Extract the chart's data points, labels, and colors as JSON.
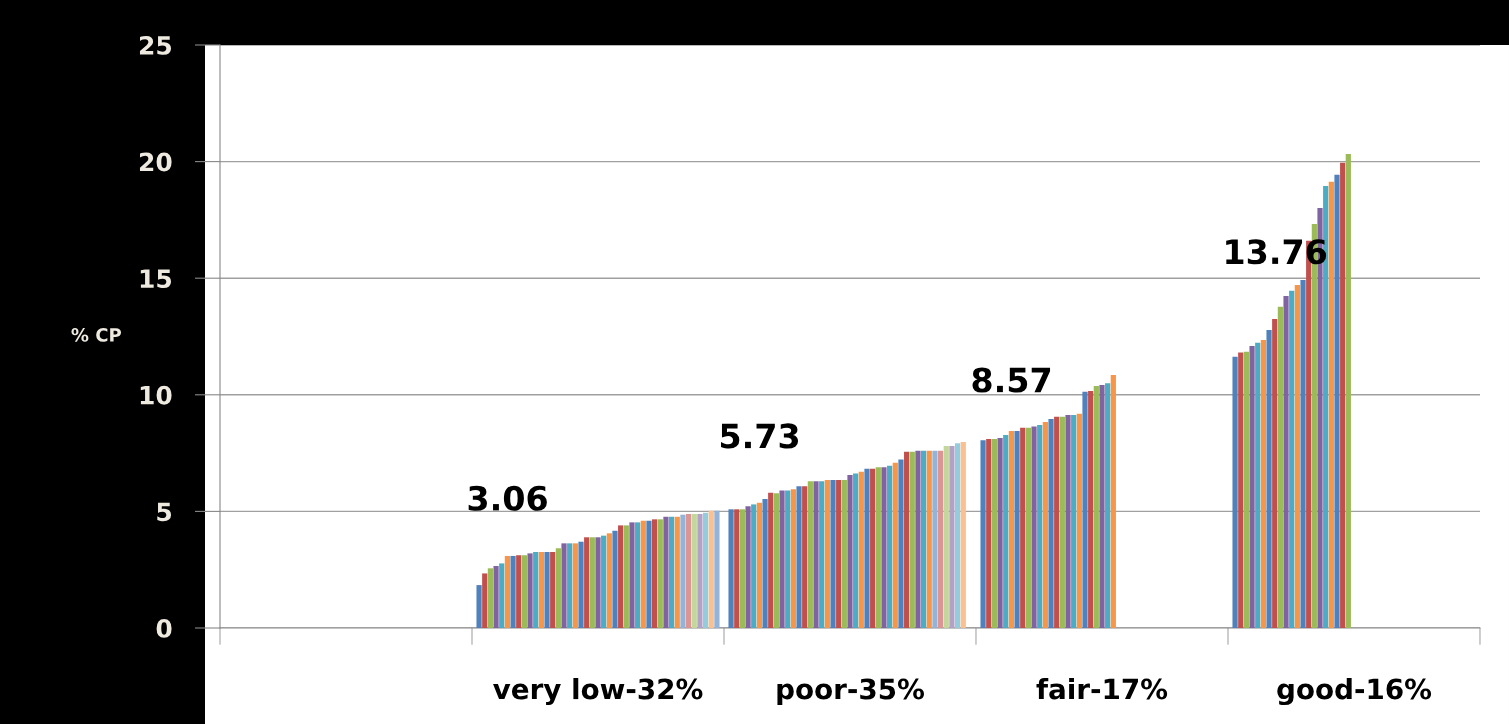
{
  "chart_data": {
    "type": "bar",
    "ylabel": "% CP",
    "categories": [
      null,
      "very low-32%",
      "poor-35%",
      "fair-17%",
      "good-16%"
    ],
    "ylim": [
      0,
      25
    ],
    "yticks": [
      0,
      5,
      10,
      15,
      20,
      25
    ],
    "grid": "y",
    "annotations": [
      "3.06",
      "5.73",
      "8.57",
      "13.76"
    ],
    "series": [
      {
        "color": "#4f81bd",
        "values": [
          null,
          1.84,
          5.09,
          8.05,
          11.63
        ]
      },
      {
        "color": "#c0504d",
        "values": [
          null,
          2.34,
          5.09,
          8.1,
          11.81
        ]
      },
      {
        "color": "#9bbb59",
        "values": [
          null,
          2.56,
          5.09,
          8.1,
          11.85
        ]
      },
      {
        "color": "#8064a2",
        "values": [
          null,
          2.66,
          5.22,
          8.15,
          12.09
        ]
      },
      {
        "color": "#4bacc6",
        "values": [
          null,
          2.77,
          5.3,
          8.28,
          12.23
        ]
      },
      {
        "color": "#f79646",
        "values": [
          null,
          3.09,
          5.37,
          8.45,
          12.35
        ]
      },
      {
        "color": "#4f81bd",
        "values": [
          null,
          3.09,
          5.53,
          8.45,
          12.78
        ]
      },
      {
        "color": "#c0504d",
        "values": [
          null,
          3.12,
          5.8,
          8.59,
          13.25
        ]
      },
      {
        "color": "#9bbb59",
        "values": [
          null,
          3.12,
          5.78,
          8.59,
          13.78
        ]
      },
      {
        "color": "#8064a2",
        "values": [
          null,
          3.2,
          5.9,
          8.64,
          14.24
        ]
      },
      {
        "color": "#4bacc6",
        "values": [
          null,
          3.26,
          5.9,
          8.71,
          14.46
        ]
      },
      {
        "color": "#f79646",
        "values": [
          null,
          3.26,
          5.95,
          8.83,
          14.71
        ]
      },
      {
        "color": "#4f81bd",
        "values": [
          null,
          3.26,
          6.08,
          8.96,
          14.92
        ]
      },
      {
        "color": "#c0504d",
        "values": [
          null,
          3.26,
          6.08,
          9.06,
          16.61
        ]
      },
      {
        "color": "#9bbb59",
        "values": [
          null,
          3.42,
          6.29,
          9.06,
          17.32
        ]
      },
      {
        "color": "#8064a2",
        "values": [
          null,
          3.63,
          6.29,
          9.13,
          18.01
        ]
      },
      {
        "color": "#4bacc6",
        "values": [
          null,
          3.63,
          6.29,
          9.13,
          18.95
        ]
      },
      {
        "color": "#f79646",
        "values": [
          null,
          3.63,
          6.35,
          9.19,
          19.14
        ]
      },
      {
        "color": "#4f81bd",
        "values": [
          null,
          3.7,
          6.35,
          10.13,
          19.44
        ]
      },
      {
        "color": "#c0504d",
        "values": [
          null,
          3.89,
          6.35,
          10.16,
          19.95
        ]
      },
      {
        "color": "#9bbb59",
        "values": [
          null,
          3.89,
          6.35,
          10.38,
          20.33
        ]
      },
      {
        "color": "#8064a2",
        "values": [
          null,
          3.89,
          6.56,
          10.42,
          null
        ]
      },
      {
        "color": "#4bacc6",
        "values": [
          null,
          3.96,
          6.63,
          10.49,
          null
        ]
      },
      {
        "color": "#f79646",
        "values": [
          null,
          4.06,
          6.7,
          10.85,
          null
        ]
      },
      {
        "color": "#4f81bd",
        "values": [
          null,
          4.17,
          6.83,
          null,
          null
        ]
      },
      {
        "color": "#c0504d",
        "values": [
          null,
          4.4,
          6.83,
          null,
          null
        ]
      },
      {
        "color": "#9bbb59",
        "values": [
          null,
          4.4,
          6.89,
          null,
          null
        ]
      },
      {
        "color": "#8064a2",
        "values": [
          null,
          4.53,
          6.89,
          null,
          null
        ]
      },
      {
        "color": "#4bacc6",
        "values": [
          null,
          4.53,
          6.96,
          null,
          null
        ]
      },
      {
        "color": "#f79646",
        "values": [
          null,
          4.6,
          7.09,
          null,
          null
        ]
      },
      {
        "color": "#4f81bd",
        "values": [
          null,
          4.6,
          7.23,
          null,
          null
        ]
      },
      {
        "color": "#c0504d",
        "values": [
          null,
          4.66,
          7.56,
          null,
          null
        ]
      },
      {
        "color": "#9bbb59",
        "values": [
          null,
          4.66,
          7.56,
          null,
          null
        ]
      },
      {
        "color": "#8064a2",
        "values": [
          null,
          4.77,
          7.6,
          null,
          null
        ]
      },
      {
        "color": "#4bacc6",
        "values": [
          null,
          4.77,
          7.6,
          null,
          null
        ]
      },
      {
        "color": "#f79646",
        "values": [
          null,
          4.77,
          7.6,
          null,
          null
        ]
      },
      {
        "color": "#95b3d7",
        "values": [
          null,
          4.86,
          7.6,
          null,
          null
        ]
      },
      {
        "color": "#d99694",
        "values": [
          null,
          4.89,
          7.6,
          null,
          null
        ]
      },
      {
        "color": "#c3d69b",
        "values": [
          null,
          4.89,
          7.8,
          null,
          null
        ]
      },
      {
        "color": "#b3a2c7",
        "values": [
          null,
          4.89,
          7.8,
          null,
          null
        ]
      },
      {
        "color": "#93cddd",
        "values": [
          null,
          4.94,
          7.92,
          null,
          null
        ]
      },
      {
        "color": "#fac08f",
        "values": [
          null,
          5.03,
          7.98,
          null,
          null
        ]
      },
      {
        "color": "#95b3d7",
        "values": [
          null,
          5.03,
          null,
          null,
          null
        ]
      }
    ]
  }
}
